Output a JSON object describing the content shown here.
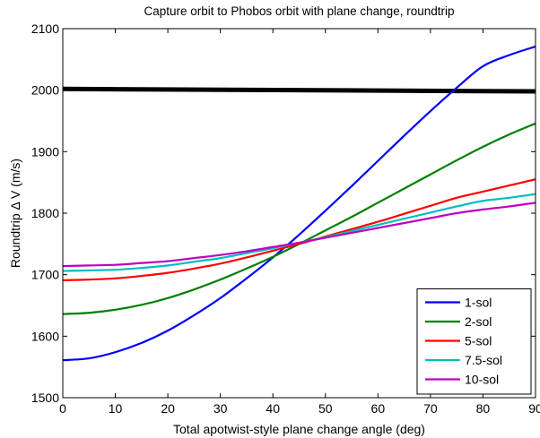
{
  "chart_data": {
    "type": "line",
    "title": "Capture orbit to Phobos orbit with plane change, roundtrip",
    "xlabel": "Total apotwist-style plane change angle (deg)",
    "ylabel": "Roundtrip Δ V (m/s)",
    "xlim": [
      0,
      90
    ],
    "ylim": [
      1500,
      2100
    ],
    "xticks": [
      0,
      10,
      20,
      30,
      40,
      50,
      60,
      70,
      80,
      90
    ],
    "yticks": [
      1500,
      1600,
      1700,
      1800,
      1900,
      2000,
      2100
    ],
    "grid": false,
    "legend_position": "bottom-right",
    "x": [
      0,
      5,
      10,
      15,
      20,
      25,
      30,
      35,
      40,
      45,
      50,
      55,
      60,
      65,
      70,
      75,
      80,
      85,
      90
    ],
    "series": [
      {
        "name": "1-sol",
        "color": "#0000ff",
        "values": [
          1561,
          1564,
          1574,
          1589,
          1609,
          1634,
          1662,
          1694,
          1728,
          1765,
          1804,
          1844,
          1885,
          1926,
          1966,
          2004,
          2039,
          2057,
          2071
        ]
      },
      {
        "name": "2-sol",
        "color": "#008000",
        "values": [
          1636,
          1638,
          1643,
          1651,
          1662,
          1676,
          1692,
          1710,
          1729,
          1750,
          1772,
          1794,
          1817,
          1840,
          1863,
          1886,
          1908,
          1928,
          1946
        ]
      },
      {
        "name": "5-sol",
        "color": "#ff0000",
        "values": [
          1691,
          1692,
          1694,
          1698,
          1703,
          1710,
          1718,
          1728,
          1739,
          1750,
          1762,
          1774,
          1786,
          1799,
          1812,
          1825,
          1835,
          1845,
          1855
        ]
      },
      {
        "name": "7.5-sol",
        "color": "#00bfbf",
        "values": [
          1706,
          1707,
          1708,
          1711,
          1715,
          1721,
          1727,
          1735,
          1743,
          1752,
          1761,
          1771,
          1781,
          1791,
          1801,
          1811,
          1820,
          1825,
          1831
        ]
      },
      {
        "name": "10-sol",
        "color": "#bf00bf",
        "values": [
          1714,
          1715,
          1716,
          1719,
          1722,
          1727,
          1732,
          1738,
          1745,
          1752,
          1760,
          1768,
          1776,
          1784,
          1792,
          1800,
          1806,
          1811,
          1817
        ]
      }
    ],
    "reference_lines": [
      {
        "color": "#000000",
        "x": [
          0,
          90
        ],
        "values": [
          2002,
          1998
        ]
      }
    ]
  }
}
